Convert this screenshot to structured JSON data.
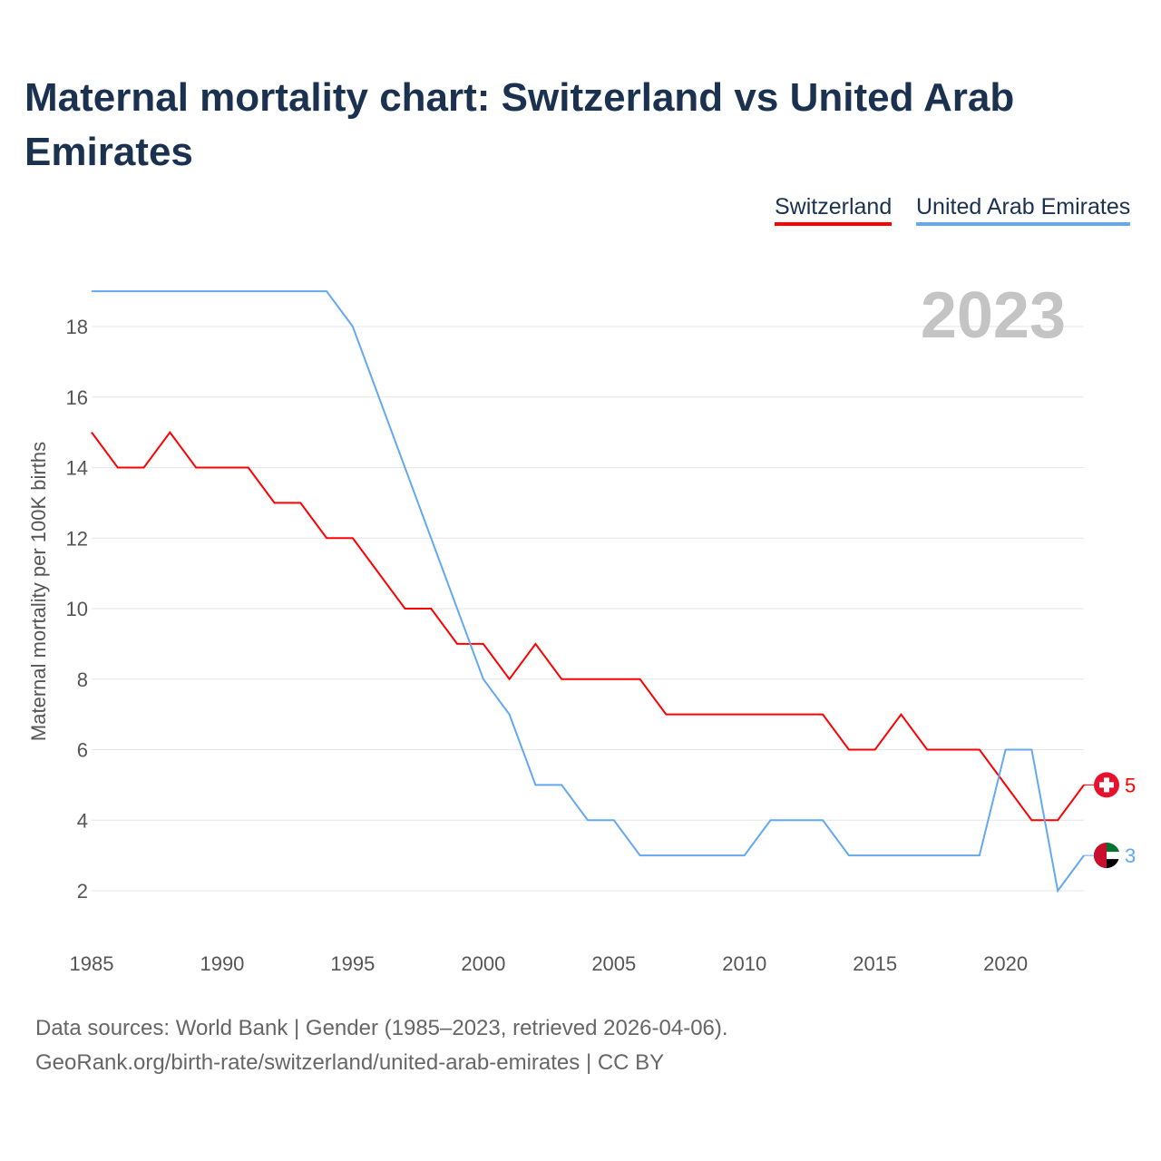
{
  "title": "Maternal mortality chart: Switzerland vs United Arab Emirates",
  "footer": {
    "line1": "Data sources: World Bank | Gender (1985–2023, retrieved 2026-04-06).",
    "line2": "GeoRank.org/birth-rate/switzerland/united-arab-emirates | CC BY"
  },
  "chart_data": {
    "type": "line",
    "title": "Maternal mortality chart: Switzerland vs United Arab Emirates",
    "ylabel": "Maternal mortality per 100K births",
    "xlabel": "",
    "year_label": "2023",
    "xlim": [
      1985,
      2023
    ],
    "ylim": [
      1,
      19.5
    ],
    "xticks": [
      1985,
      1990,
      1995,
      2000,
      2005,
      2010,
      2015,
      2020
    ],
    "yticks": [
      2,
      4,
      6,
      8,
      10,
      12,
      14,
      16,
      18
    ],
    "legend": "top-right",
    "x": [
      1985,
      1986,
      1987,
      1988,
      1989,
      1990,
      1991,
      1992,
      1993,
      1994,
      1995,
      1996,
      1997,
      1998,
      1999,
      2000,
      2001,
      2002,
      2003,
      2004,
      2005,
      2006,
      2007,
      2008,
      2009,
      2010,
      2011,
      2012,
      2013,
      2014,
      2015,
      2016,
      2017,
      2018,
      2019,
      2020,
      2021,
      2022,
      2023
    ],
    "series": [
      {
        "name": "Switzerland",
        "color": "#ff0000",
        "end_label": "5",
        "values": [
          15,
          14,
          14,
          15,
          14,
          14,
          14,
          13,
          13,
          12,
          12,
          11,
          10,
          10,
          9,
          9,
          8,
          9,
          8,
          8,
          8,
          8,
          7,
          7,
          7,
          7,
          7,
          7,
          7,
          6,
          6,
          7,
          6,
          6,
          6,
          5,
          4,
          4,
          5
        ]
      },
      {
        "name": "United Arab Emirates",
        "color": "#63a8f0",
        "end_label": "3",
        "values": [
          19,
          19,
          19,
          19,
          19,
          19,
          19,
          19,
          19,
          19,
          18,
          16,
          14,
          12,
          10,
          8,
          7,
          5,
          5,
          4,
          4,
          3,
          3,
          3,
          3,
          3,
          4,
          4,
          4,
          3,
          3,
          3,
          3,
          3,
          3,
          6,
          6,
          2,
          3
        ]
      }
    ]
  }
}
